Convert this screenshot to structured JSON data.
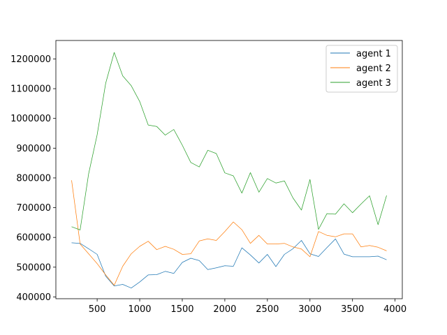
{
  "chart_data": {
    "type": "line",
    "title": "",
    "xlabel": "",
    "ylabel": "",
    "xlim": [
      15,
      4085
    ],
    "ylim": [
      394000,
      1262000
    ],
    "xticks": [
      500,
      1000,
      1500,
      2000,
      2500,
      3000,
      3500,
      4000
    ],
    "yticks": [
      400000,
      500000,
      600000,
      700000,
      800000,
      900000,
      1000000,
      1100000,
      1200000
    ],
    "grid": false,
    "legend_position": "top-right",
    "x": [
      200,
      300,
      400,
      500,
      600,
      700,
      800,
      900,
      1000,
      1100,
      1200,
      1300,
      1400,
      1500,
      1600,
      1700,
      1800,
      1900,
      2000,
      2100,
      2200,
      2300,
      2400,
      2500,
      2600,
      2700,
      2800,
      2900,
      3000,
      3100,
      3200,
      3300,
      3400,
      3500,
      3600,
      3700,
      3800,
      3900
    ],
    "series": [
      {
        "name": "agent 1",
        "color": "#1f77b4",
        "values": [
          582000,
          580000,
          562000,
          543000,
          470000,
          437000,
          442000,
          430000,
          450000,
          474000,
          475000,
          486000,
          479000,
          516000,
          530000,
          522000,
          492000,
          498000,
          505000,
          503000,
          565000,
          541000,
          514000,
          543000,
          502000,
          543000,
          562000,
          590000,
          545000,
          536000,
          566000,
          595000,
          544000,
          535000,
          535000,
          535000,
          537000,
          525000
        ]
      },
      {
        "name": "agent 2",
        "color": "#ff7f0e",
        "values": [
          792000,
          578000,
          545000,
          512000,
          474000,
          439000,
          503000,
          545000,
          570000,
          587000,
          559000,
          570000,
          560000,
          543000,
          545000,
          588000,
          595000,
          590000,
          620000,
          652000,
          626000,
          580000,
          607000,
          578000,
          578000,
          580000,
          568000,
          561000,
          535000,
          620000,
          607000,
          602000,
          612000,
          612000,
          568000,
          573000,
          567000,
          555000
        ]
      },
      {
        "name": "agent 3",
        "color": "#2ca02c",
        "values": [
          636000,
          625000,
          814000,
          945000,
          1118000,
          1222000,
          1143000,
          1110000,
          1057000,
          978000,
          973000,
          944000,
          963000,
          910000,
          852000,
          837000,
          893000,
          882000,
          817000,
          807000,
          749000,
          818000,
          752000,
          798000,
          783000,
          790000,
          733000,
          692000,
          795000,
          627000,
          680000,
          678000,
          713000,
          683000,
          712000,
          740000,
          643000,
          741000
        ]
      }
    ]
  }
}
